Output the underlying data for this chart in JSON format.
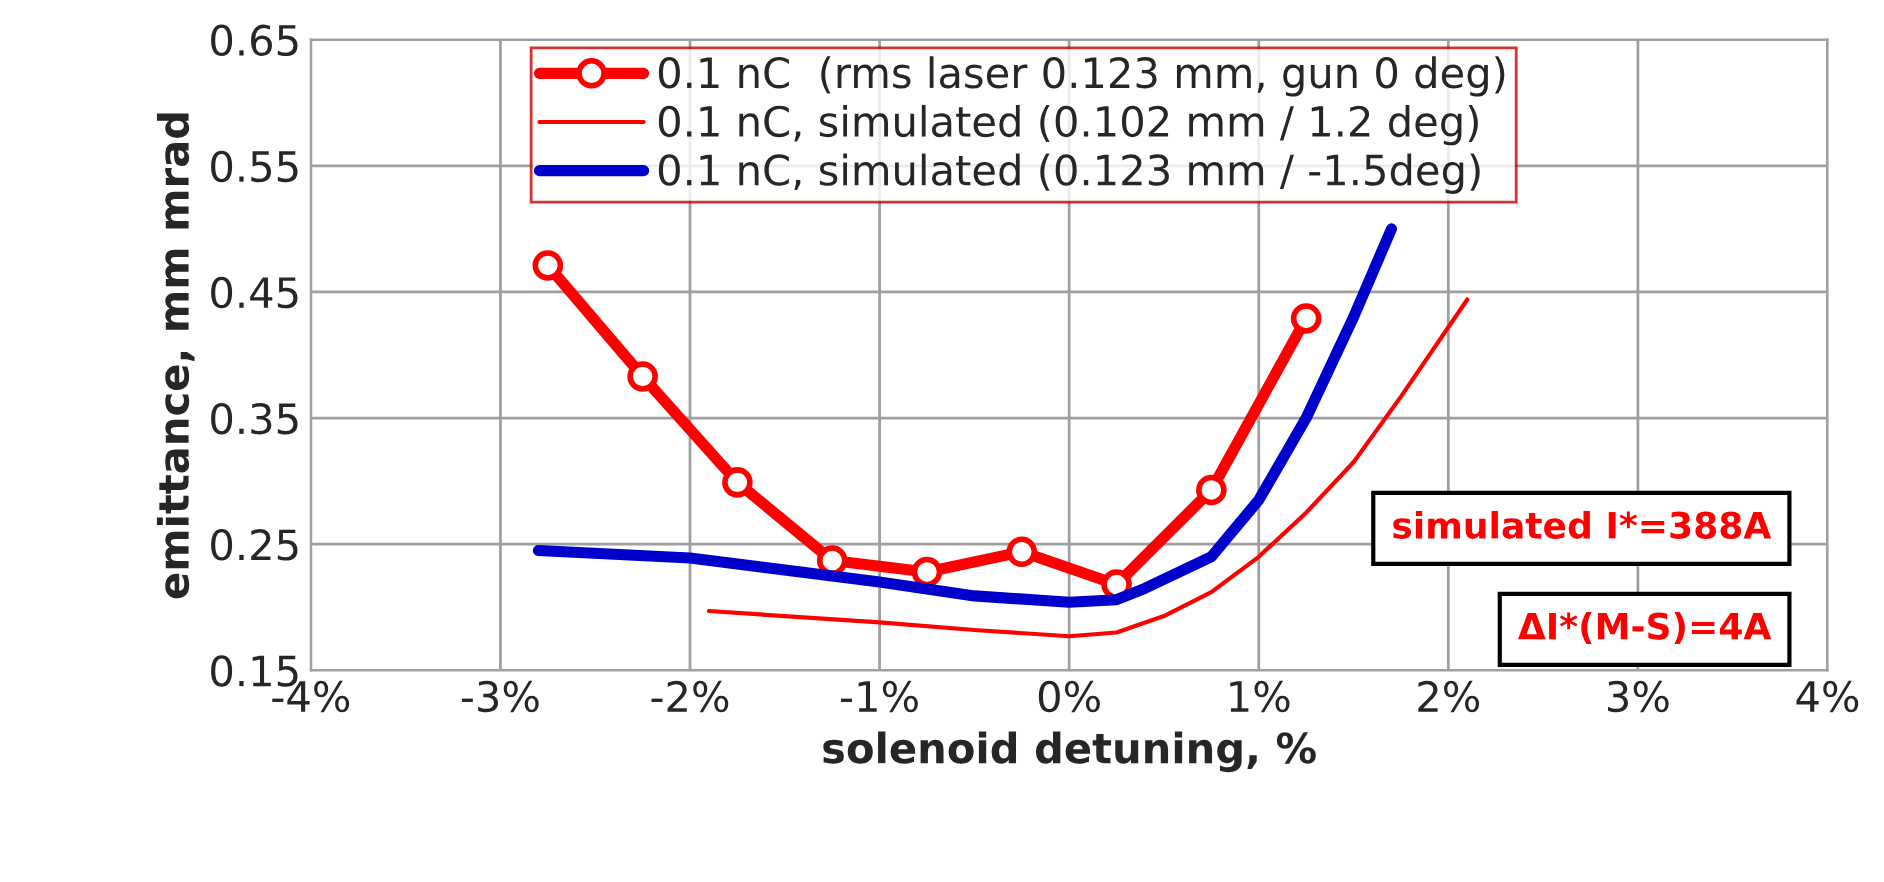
{
  "chart_data": {
    "type": "line",
    "xlabel": "solenoid detuning, %",
    "ylabel": "emittance, mm mrad",
    "xlim": [
      -4,
      4
    ],
    "xticks": [
      {
        "value": -4,
        "label": "-4%"
      },
      {
        "value": -3,
        "label": "-3%"
      },
      {
        "value": -2,
        "label": "-2%"
      },
      {
        "value": -1,
        "label": "-1%"
      },
      {
        "value": 0,
        "label": "0%"
      },
      {
        "value": 1,
        "label": "1%"
      },
      {
        "value": 2,
        "label": "2%"
      },
      {
        "value": 3,
        "label": "3%"
      },
      {
        "value": 4,
        "label": "4%"
      }
    ],
    "ylim": [
      0.15,
      0.65
    ],
    "yticks": [
      0.15,
      0.25,
      0.35,
      0.45,
      0.55,
      0.65
    ],
    "grid": true,
    "legend": "top",
    "series": [
      {
        "name": "0.1 nC  (rms laser 0.123 mm, gun 0 deg)",
        "color": "#ff0000",
        "marker": "circle",
        "x": [
          -2.75,
          -2.25,
          -1.75,
          -1.25,
          -0.75,
          -0.25,
          0.25,
          0.75,
          1.25
        ],
        "values": [
          0.471,
          0.383,
          0.299,
          0.237,
          0.228,
          0.244,
          0.218,
          0.293,
          0.429
        ]
      },
      {
        "name": "0.1 nC, simulated (0.102 mm / 1.2 deg)",
        "color": "#ff0000",
        "marker": "none",
        "x": [
          -1.9,
          -1.0,
          -0.5,
          0.0,
          0.25,
          0.5,
          0.75,
          1.0,
          1.25,
          1.5,
          1.75,
          2.1
        ],
        "values": [
          0.197,
          0.188,
          0.182,
          0.177,
          0.18,
          0.193,
          0.212,
          0.24,
          0.275,
          0.315,
          0.367,
          0.444
        ]
      },
      {
        "name": "0.1 nC, simulated (0.123 mm / -1.5deg)",
        "color": "#0000cc",
        "marker": "none",
        "x": [
          -2.8,
          -2.0,
          -1.0,
          -0.5,
          0.0,
          0.25,
          0.4,
          0.75,
          1.0,
          1.25,
          1.5,
          1.7
        ],
        "values": [
          0.245,
          0.239,
          0.22,
          0.209,
          0.204,
          0.206,
          0.215,
          0.24,
          0.285,
          0.35,
          0.43,
          0.5
        ]
      }
    ],
    "annotations": [
      "simulated I*=388A",
      "ΔI*(M-S)=4A"
    ]
  }
}
